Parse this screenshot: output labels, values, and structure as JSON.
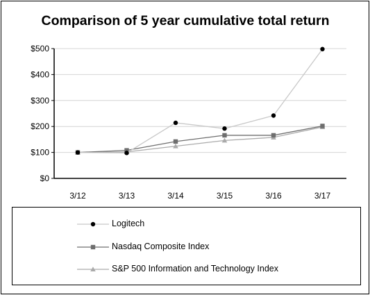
{
  "chart_data": {
    "type": "line",
    "title": "Comparison of 5 year cumulative total return",
    "categories": [
      "3/12",
      "3/13",
      "3/14",
      "3/15",
      "3/16",
      "3/17"
    ],
    "y_ticks": [
      "$0",
      "$100",
      "$200",
      "$300",
      "$400",
      "$500"
    ],
    "ylim": [
      0,
      500
    ],
    "grid": "horizontal",
    "legend_placement": "bottom",
    "series": [
      {
        "name": "Logitech",
        "values": [
          100,
          98,
          214,
          192,
          242,
          498
        ],
        "color": "#000000",
        "line_color": "#c8c8c8",
        "marker": "circle"
      },
      {
        "name": "Nasdaq Composite Index",
        "values": [
          100,
          108,
          142,
          166,
          166,
          202
        ],
        "color": "#6e6e6e",
        "line_color": "#6e6e6e",
        "marker": "square"
      },
      {
        "name": "S&P 500 Information and Technology Index",
        "values": [
          100,
          102,
          124,
          146,
          158,
          198
        ],
        "color": "#aaaaaa",
        "line_color": "#aaaaaa",
        "marker": "triangle"
      }
    ]
  }
}
